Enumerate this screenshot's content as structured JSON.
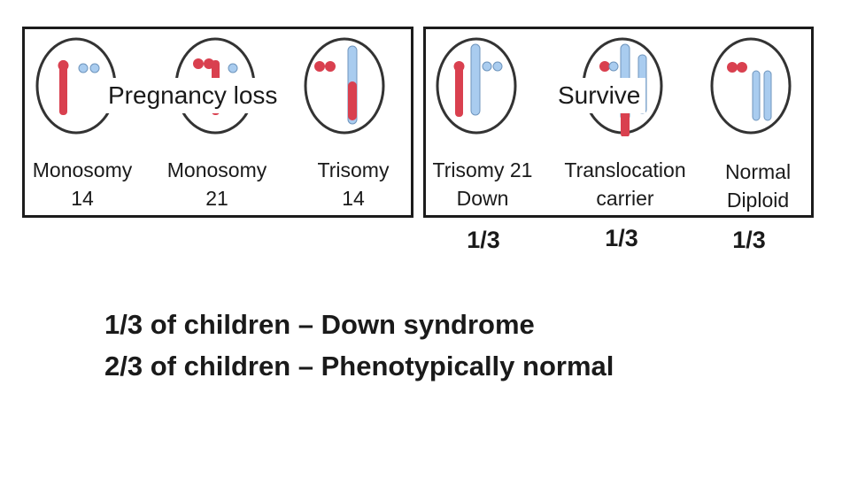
{
  "groups": {
    "loss": {
      "title": "Pregnancy loss",
      "cells": [
        {
          "line1": "Monosomy",
          "line2": "14"
        },
        {
          "line1": "Monosomy",
          "line2": "21"
        },
        {
          "line1": "Trisomy",
          "line2": "14"
        }
      ]
    },
    "survive": {
      "title": "Survive",
      "cells": [
        {
          "line1": "Trisomy 21",
          "line2": "Down",
          "ratio": "1/3"
        },
        {
          "line1": "Translocation",
          "line2": "carrier",
          "ratio": "1/3"
        },
        {
          "line1": "Normal",
          "line2": "Diploid",
          "ratio": "1/3"
        }
      ]
    }
  },
  "summary": {
    "line1": "1/3 of children – Down syndrome",
    "line2": "2/3 of children – Phenotypically normal"
  },
  "colors": {
    "maternal_chromosome": "#d9404f",
    "paternal_chromosome": "#a9ccef",
    "cell_outline": "#333333"
  }
}
